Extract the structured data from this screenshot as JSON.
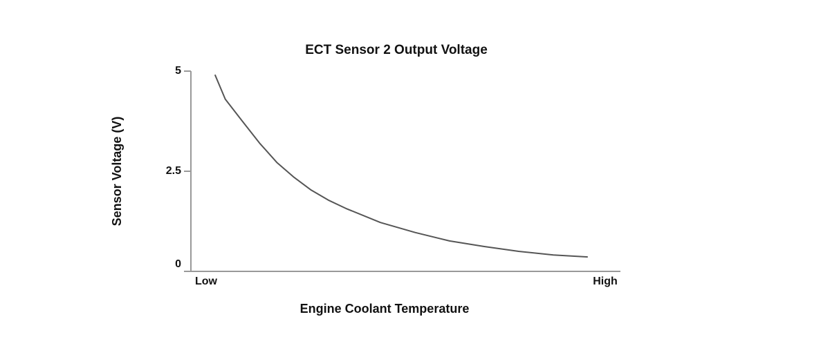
{
  "chart_data": {
    "type": "line",
    "title": "ECT Sensor 2 Output Voltage",
    "xlabel": "Engine Coolant Temperature",
    "ylabel": "Sensor Voltage (V)",
    "x": [
      0.056,
      0.08,
      0.119,
      0.16,
      0.2,
      0.24,
      0.28,
      0.32,
      0.361,
      0.441,
      0.522,
      0.602,
      0.683,
      0.763,
      0.844,
      0.924
    ],
    "series": [
      {
        "name": "Sensor Voltage",
        "color": "#555555",
        "values": [
          4.91,
          4.3,
          3.76,
          3.2,
          2.72,
          2.35,
          2.03,
          1.78,
          1.57,
          1.22,
          0.97,
          0.76,
          0.62,
          0.5,
          0.41,
          0.36
        ]
      }
    ],
    "xlim": [
      0,
      1
    ],
    "xticks": [
      {
        "value": 0,
        "label": "Low"
      },
      {
        "value": 1,
        "label": "High"
      }
    ],
    "ylim": [
      0,
      5
    ],
    "yticks": [
      0,
      2.5,
      5
    ],
    "grid": false
  }
}
